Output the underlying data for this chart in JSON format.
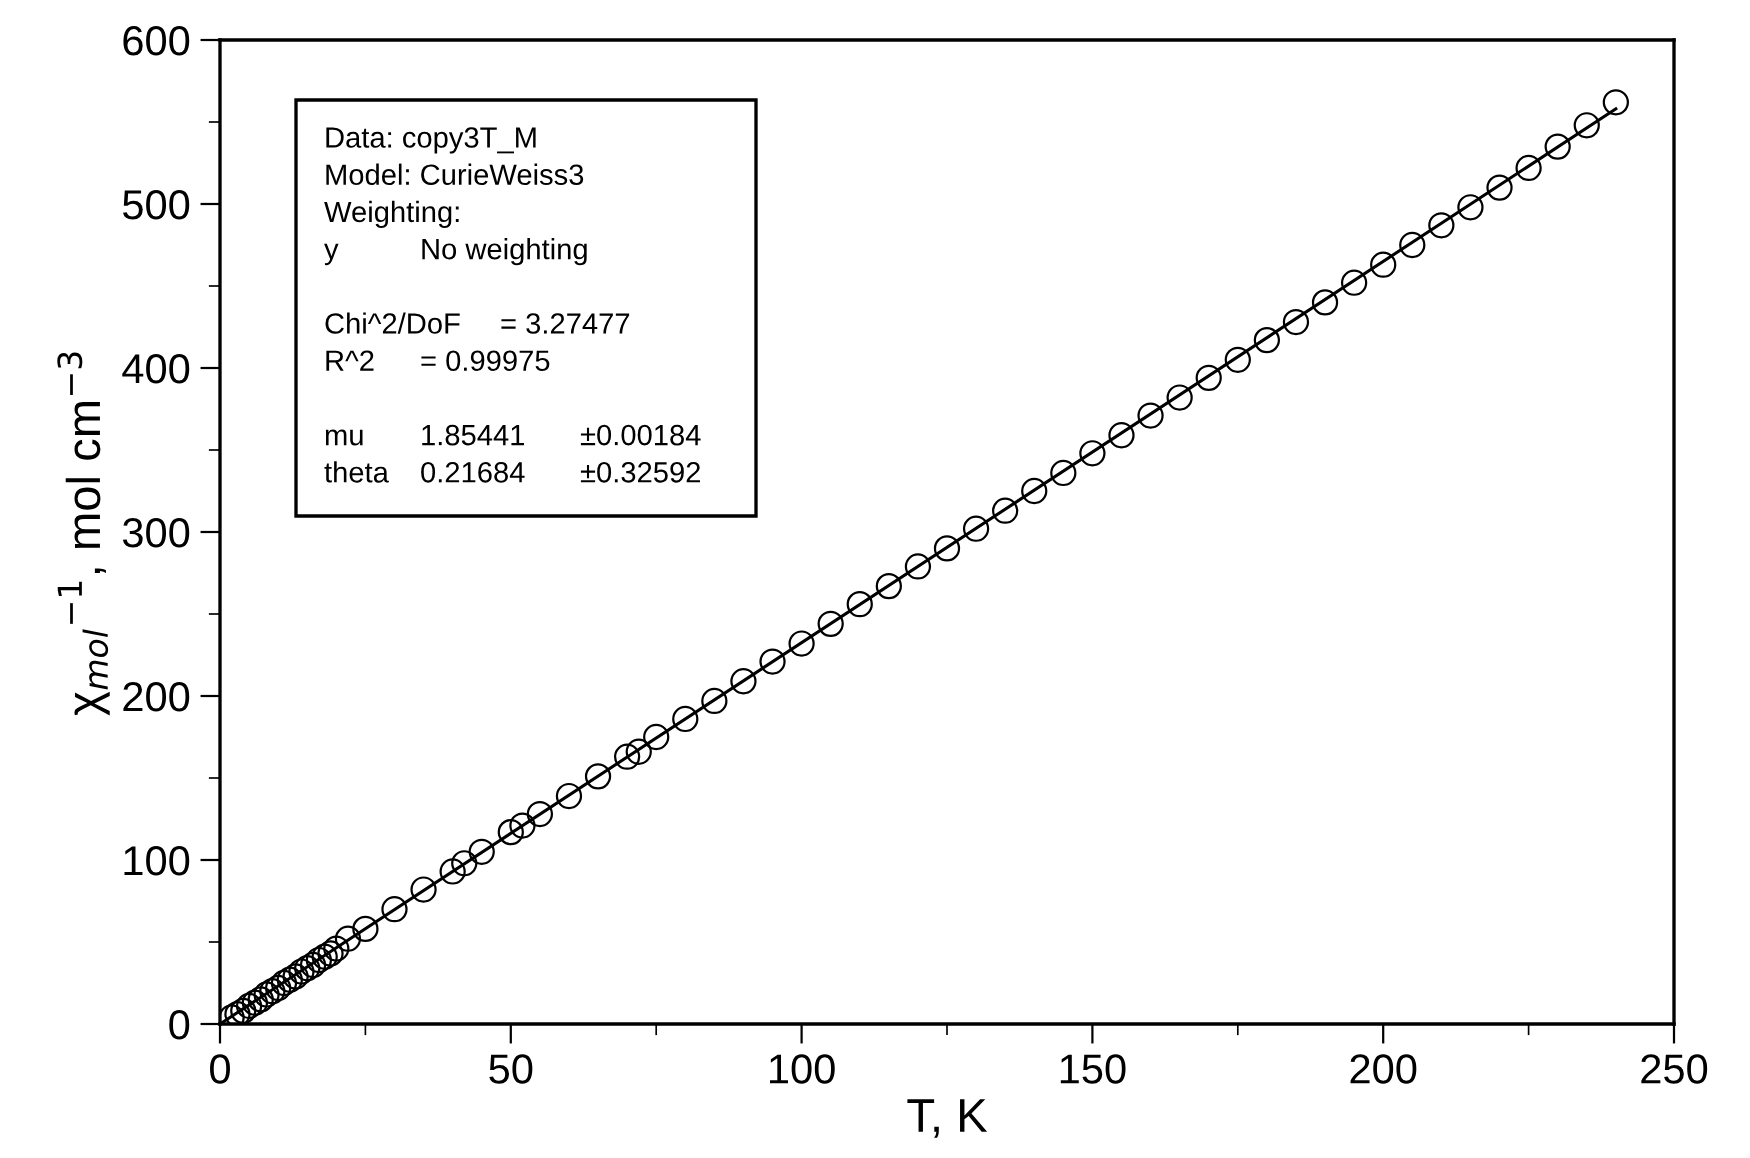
{
  "chart_data": {
    "type": "scatter",
    "xlabel": "T, K",
    "ylabel": "χ$_{mol}$$^{−1}$, mol cm$^{−3}$",
    "xlim": [
      0,
      250
    ],
    "ylim": [
      0,
      600
    ],
    "xticks": [
      0,
      {
        "value": 25,
        "label": null
      },
      50,
      {
        "value": 75,
        "label": null
      },
      100,
      {
        "value": 125,
        "label": null
      },
      150,
      {
        "value": 175,
        "label": null
      },
      200,
      {
        "value": 225,
        "label": null
      },
      250
    ],
    "yticks": [
      0,
      {
        "value": 50,
        "label": null
      },
      100,
      {
        "value": 150,
        "label": null
      },
      200,
      {
        "value": 250,
        "label": null
      },
      300,
      {
        "value": 350,
        "label": null
      },
      400,
      {
        "value": 450,
        "label": null
      },
      500,
      {
        "value": 550,
        "label": null
      },
      600
    ],
    "grid": false,
    "legend": false,
    "series": [
      {
        "marker": "circle",
        "color": "#000000",
        "x": [
          2,
          3,
          4,
          5,
          6,
          7,
          8,
          9,
          10,
          11,
          12,
          13,
          14,
          15,
          16,
          17,
          18,
          19,
          20,
          22,
          25,
          30,
          35,
          40,
          42,
          45,
          50,
          52,
          55,
          60,
          65,
          70,
          72,
          75,
          80,
          85,
          90,
          95,
          100,
          105,
          110,
          115,
          120,
          125,
          130,
          135,
          140,
          145,
          150,
          155,
          160,
          165,
          170,
          175,
          180,
          185,
          190,
          195,
          200,
          205,
          210,
          215,
          220,
          225,
          230,
          235,
          240
        ],
        "values": [
          4,
          6,
          8,
          11,
          13,
          15,
          18,
          20,
          22,
          25,
          27,
          29,
          32,
          34,
          36,
          39,
          41,
          43,
          46,
          52,
          58,
          70,
          82,
          93,
          98,
          105,
          117,
          121,
          128,
          139,
          151,
          163,
          166,
          175,
          186,
          197,
          209,
          221,
          232,
          244,
          256,
          267,
          279,
          290,
          302,
          313,
          325,
          336,
          348,
          359,
          371,
          382,
          394,
          405,
          417,
          428,
          440,
          452,
          463,
          475,
          487,
          498,
          510,
          522,
          535,
          548,
          562
        ]
      },
      {
        "type": "line",
        "marker": "none",
        "line_style": "solid",
        "color": "#000000",
        "x": [
          0,
          240
        ],
        "values": [
          0,
          558
        ]
      }
    ],
    "annotations": [
      "Data: copy3T_M",
      "Model: CurieWeiss3",
      "Weighting:",
      "y    No weighting",
      "Chi^2/DoF    = 3.27477",
      "R^2    = 0.99975",
      "mu    1.85441    ±0.00184",
      "theta    0.21684    ±0.32592"
    ]
  }
}
